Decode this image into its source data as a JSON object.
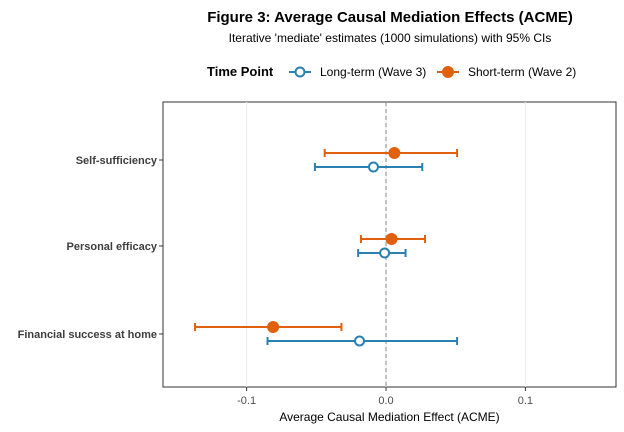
{
  "chart_data": {
    "type": "scatter",
    "title": "Figure 3: Average Causal Mediation Effects (ACME)",
    "subtitle": "Iterative 'mediate' estimates (1000 simulations) with 95% CIs",
    "xlabel": "Average Causal Mediation Effect (ACME)",
    "ylabel": "",
    "xlim": [
      -0.16,
      0.165
    ],
    "x_ticks": [
      -0.1,
      0.0,
      0.1
    ],
    "x_tick_labels": [
      "-0.1",
      "0.0",
      "0.1"
    ],
    "reference_line": 0,
    "grid": true,
    "legend": {
      "title": "Time Point",
      "position": "top"
    },
    "categories": [
      "Self-sufficiency",
      "Personal efficacy",
      "Financial success at home"
    ],
    "series": [
      {
        "name": "Long-term (Wave 3)",
        "color": "#2a80b0",
        "marker": "open-circle",
        "estimates": [
          -0.009,
          -0.001,
          -0.019
        ],
        "ci_low": [
          -0.051,
          -0.02,
          -0.085
        ],
        "ci_high": [
          0.026,
          0.014,
          0.051
        ]
      },
      {
        "name": "Short-term (Wave 2)",
        "color": "#e0600e",
        "marker": "filled-circle",
        "estimates": [
          0.006,
          0.004,
          -0.081
        ],
        "ci_low": [
          -0.044,
          -0.018,
          -0.137
        ],
        "ci_high": [
          0.051,
          0.028,
          -0.032
        ]
      }
    ]
  }
}
